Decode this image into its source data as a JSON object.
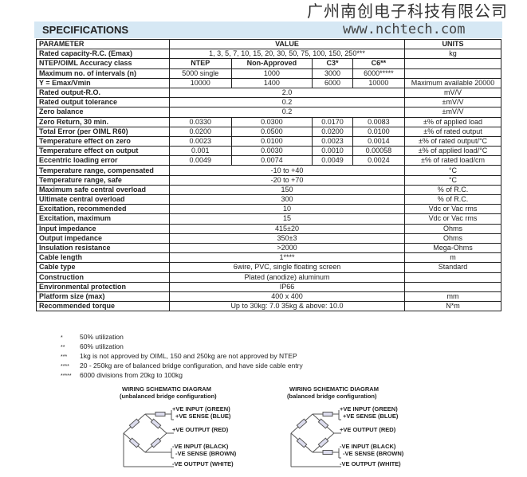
{
  "watermark": {
    "company": "广州南创电子科技有限公司",
    "url": "www.nchtech.com"
  },
  "title": "SPECIFICATIONS",
  "header": {
    "parameter": "PARAMETER",
    "value": "VALUE",
    "units": "UNITS"
  },
  "rows": [
    {
      "p": "Rated capacity-R.C. (Emax)",
      "v": "1, 3, 5, 7, 10, 15, 20, 30, 50, 75, 100, 150, 250***",
      "u": "kg"
    },
    {
      "p": "NTEP/OIML Accuracy class",
      "vals": [
        "NTEP",
        "Non-Approved",
        "C3*",
        "C6**"
      ],
      "u": "",
      "bold": true
    },
    {
      "p": "Maximum no. of intervals (n)",
      "vals": [
        "5000 single",
        "1000",
        "3000",
        "6000*****"
      ],
      "u": ""
    },
    {
      "p": "Y = Emax/Vmin",
      "vals": [
        "10000",
        "1400",
        "6000",
        "10000"
      ],
      "u": "Maximum available 20000"
    },
    {
      "p": "Rated output-R.O.",
      "v": "2.0",
      "u": "mV/V"
    },
    {
      "p": "Rated output tolerance",
      "v": "0.2",
      "u": "±mV/V"
    },
    {
      "p": "Zero balance",
      "v": "0.2",
      "u": "±mV/V"
    },
    {
      "p": "Zero Return, 30 min.",
      "vals": [
        "0.0330",
        "0.0300",
        "0.0170",
        "0.0083"
      ],
      "u": "±% of applied load"
    },
    {
      "p": "Total Error (per OIML R60)",
      "vals": [
        "0.0200",
        "0.0500",
        "0.0200",
        "0.0100"
      ],
      "u": "±% of rated output"
    },
    {
      "p": "Temperature effect on zero",
      "vals": [
        "0.0023",
        "0.0100",
        "0.0023",
        "0.0014"
      ],
      "u": "±% of rated output/°C"
    },
    {
      "p": "Temperature effect on output",
      "vals": [
        "0.001",
        "0.0030",
        "0.0010",
        "0.00058"
      ],
      "u": "±% of applied load/°C"
    },
    {
      "p": "Eccentric loading error",
      "vals": [
        "0.0049",
        "0.0074",
        "0.0049",
        "0.0024"
      ],
      "u": "±% of rated load/cm"
    },
    {
      "p": "Temperature range, compensated",
      "v": "-10 to +40",
      "u": "°C"
    },
    {
      "p": "Temperature range, safe",
      "v": "-20 to +70",
      "u": "°C"
    },
    {
      "p": "Maximum safe central overload",
      "v": "150",
      "u": "% of R.C."
    },
    {
      "p": "Ultimate central overload",
      "v": "300",
      "u": "% of R.C."
    },
    {
      "p": "Excitation, recommended",
      "v": "10",
      "u": "Vdc or Vac rms"
    },
    {
      "p": "Excitation, maximum",
      "v": "15",
      "u": "Vdc or Vac rms"
    },
    {
      "p": "Input impedance",
      "v": "415±20",
      "u": "Ohms"
    },
    {
      "p": "Output impedance",
      "v": "350±3",
      "u": "Ohms"
    },
    {
      "p": "Insulation resistance",
      "v": ">2000",
      "u": "Mega-Ohms"
    },
    {
      "p": "Cable length",
      "v": "1****",
      "u": "m"
    },
    {
      "p": "Cable type",
      "v": "6wire, PVC, single floating screen",
      "u": "Standard"
    },
    {
      "p": "Construction",
      "v": "Plated (anodize) aluminum",
      "u": ""
    },
    {
      "p": "Environmental protection",
      "v": "IP66",
      "u": ""
    },
    {
      "p": "Platform size (max)",
      "v": "400 x 400",
      "u": "mm"
    },
    {
      "p": "Recommended torque",
      "v": "Up to 30kg: 7.0     35kg & above: 10.0",
      "u": "N*m"
    }
  ],
  "notes": [
    {
      "mark": "*",
      "text": "50% utilization"
    },
    {
      "mark": "**",
      "text": "60% utilization"
    },
    {
      "mark": "***",
      "text": "1kg is not approved by OIML, 150 and 250kg are not approved by NTEP"
    },
    {
      "mark": "****",
      "text": "20 - 250kg are of balanced bridge configuration, and have side cable entry"
    },
    {
      "mark": "*****",
      "text": "6000 divisions from 20kg to 100kg"
    }
  ],
  "diagrams": [
    {
      "title": "WIRING SCHEMATIC DIAGRAM",
      "subtitle": "(unbalanced bridge configuration)"
    },
    {
      "title": "WIRING SCHEMATIC DIAGRAM",
      "subtitle": "(balanced bridge configuration)"
    }
  ],
  "wires": [
    "+VE INPUT (GREEN)",
    "+VE SENSE (BLUE)",
    "+VE OUTPUT (RED)",
    "-VE INPUT (BLACK)",
    "-VE SENSE (BROWN)",
    "-VE OUTPUT (WHITE)"
  ]
}
